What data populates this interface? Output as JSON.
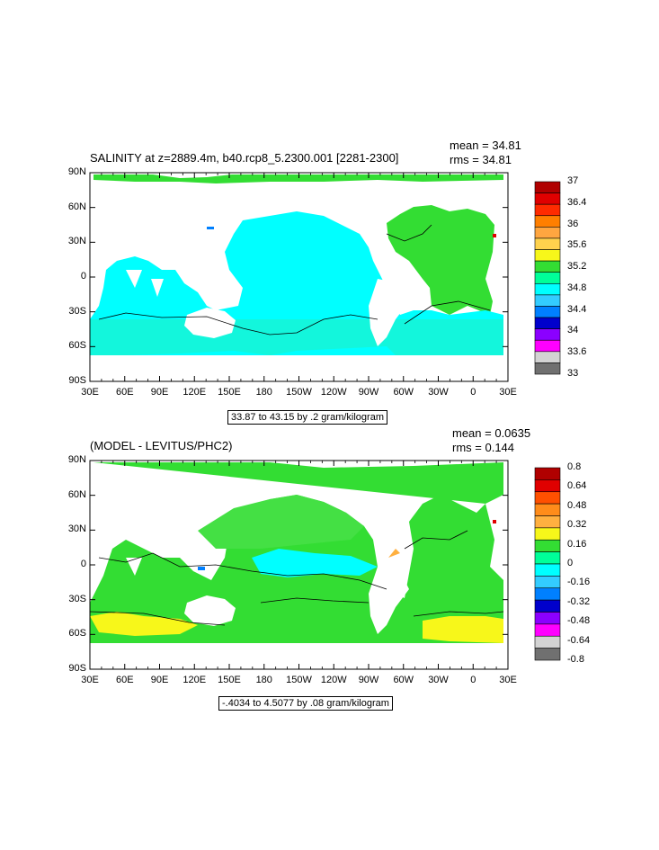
{
  "colors": {
    "land": "#ffffff",
    "frame": "#000000"
  },
  "panels": [
    {
      "title": "SALINITY at z=2889.4m, b40.rcp8_5.2300.001 [2281-2300]",
      "mean_label": "mean = 34.81",
      "rms_label": "rms = 34.81",
      "range_label": "33.87 to 43.15 by .2 gram/kilogram",
      "lat_labels": [
        "90N",
        "60N",
        "30N",
        "0",
        "30S",
        "60S",
        "90S"
      ],
      "lon_labels": [
        "30E",
        "60E",
        "90E",
        "120E",
        "150E",
        "180",
        "150W",
        "120W",
        "90W",
        "60W",
        "30W",
        "0",
        "30E"
      ],
      "colorbar": {
        "labels": [
          "37",
          "36.4",
          "36",
          "35.6",
          "35.2",
          "34.8",
          "34.4",
          "34",
          "33.6",
          "33"
        ],
        "colors": [
          "#b00000",
          "#e00000",
          "#ff2b00",
          "#ff7f00",
          "#ffa640",
          "#ffd24d",
          "#f7f71a",
          "#33dd33",
          "#00ff99",
          "#00ffff",
          "#33ccff",
          "#0080ff",
          "#0000cc",
          "#8b00ff",
          "#ff00ff",
          "#d3d3d3",
          "#707070"
        ]
      }
    },
    {
      "title": "(MODEL - LEVITUS/PHC2)",
      "mean_label": "mean = 0.0635",
      "rms_label": "rms = 0.144",
      "range_label": "-.4034 to 4.5077 by .08 gram/kilogram",
      "lat_labels": [
        "90N",
        "60N",
        "30N",
        "0",
        "30S",
        "60S",
        "90S"
      ],
      "lon_labels": [
        "30E",
        "60E",
        "90E",
        "120E",
        "150E",
        "180",
        "150W",
        "120W",
        "90W",
        "60W",
        "30W",
        "0",
        "30E"
      ],
      "colorbar": {
        "labels": [
          "0.8",
          "0.64",
          "0.48",
          "0.32",
          "0.16",
          "0",
          "-0.16",
          "-0.32",
          "-0.48",
          "-0.64",
          "-0.8"
        ],
        "colors": [
          "#b00000",
          "#e00000",
          "#ff5000",
          "#ff8c1a",
          "#ffb040",
          "#f7f71a",
          "#33dd33",
          "#00ff99",
          "#00ffff",
          "#33ccff",
          "#0080ff",
          "#0000cc",
          "#8b00ff",
          "#ff00ff",
          "#d3d3d3",
          "#707070"
        ]
      }
    }
  ]
}
